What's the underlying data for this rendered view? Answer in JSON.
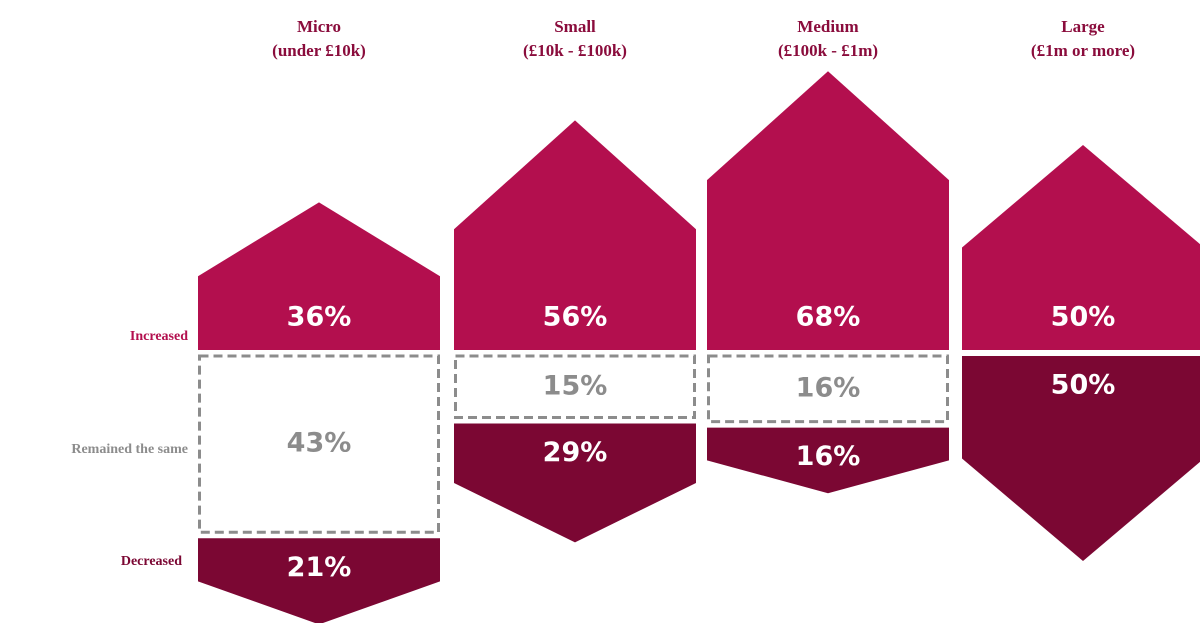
{
  "chart_data": {
    "type": "arrow-stack",
    "categories": [
      "Micro",
      "Small",
      "Medium",
      "Large"
    ],
    "category_ranges": [
      "(under £10k)",
      "(£10k - £100k)",
      "(£100k - £1m)",
      "(£1m or more)"
    ],
    "series": [
      {
        "name": "Increased",
        "color": "#b30f4e",
        "values": [
          36,
          56,
          68,
          50
        ],
        "value_labels": [
          "36%",
          "56%",
          "68%",
          "50%"
        ]
      },
      {
        "name": "Remained the same",
        "color": "#8c8c8c",
        "values": [
          43,
          15,
          16,
          null
        ],
        "value_labels": [
          "43%",
          "15%",
          "16%",
          null
        ]
      },
      {
        "name": "Decreased",
        "color": "#7b0733",
        "values": [
          21,
          29,
          16,
          50
        ],
        "value_labels": [
          "21%",
          "29%",
          "16%",
          "50%"
        ]
      }
    ]
  }
}
